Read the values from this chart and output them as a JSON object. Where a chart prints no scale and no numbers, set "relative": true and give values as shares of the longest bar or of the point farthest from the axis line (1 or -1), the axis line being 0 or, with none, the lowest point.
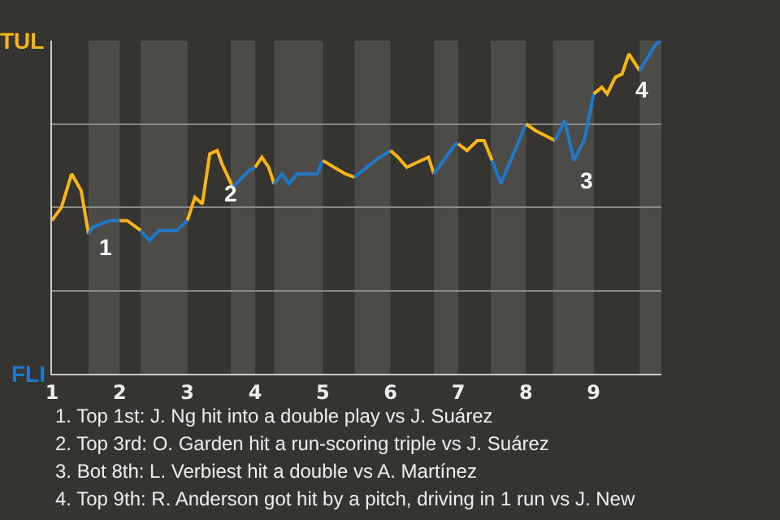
{
  "chart_data": {
    "type": "line",
    "relative": true,
    "series": [
      {
        "color": "#f7b516",
        "x": [
          1.0,
          1.14,
          1.29,
          1.43,
          1.54
        ],
        "values": [
          0.46,
          0.5,
          0.6,
          0.55,
          0.42
        ]
      },
      {
        "color": "#1f78c8",
        "x": [
          1.54,
          1.6,
          1.86,
          2.0
        ],
        "values": [
          0.42,
          0.44,
          0.46,
          0.46
        ]
      },
      {
        "color": "#f7b516",
        "x": [
          2.0,
          2.11,
          2.31
        ],
        "values": [
          0.46,
          0.46,
          0.43
        ]
      },
      {
        "color": "#1f78c8",
        "x": [
          2.31,
          2.44,
          2.58,
          2.84,
          3.0
        ],
        "values": [
          0.43,
          0.4,
          0.43,
          0.43,
          0.46
        ]
      },
      {
        "color": "#f7b516",
        "x": [
          3.0,
          3.11,
          3.22,
          3.33,
          3.44,
          3.51,
          3.67
        ],
        "values": [
          0.46,
          0.53,
          0.51,
          0.66,
          0.67,
          0.63,
          0.56
        ]
      },
      {
        "color": "#1f78c8",
        "x": [
          3.67,
          3.91,
          4.0
        ],
        "values": [
          0.56,
          0.61,
          0.62
        ]
      },
      {
        "color": "#f7b516",
        "x": [
          4.0,
          4.1,
          4.2,
          4.28
        ],
        "values": [
          0.62,
          0.65,
          0.62,
          0.57
        ]
      },
      {
        "color": "#1f78c8",
        "x": [
          4.28,
          4.4,
          4.5,
          4.62,
          4.92,
          5.0
        ],
        "values": [
          0.57,
          0.6,
          0.57,
          0.6,
          0.6,
          0.64
        ]
      },
      {
        "color": "#f7b516",
        "x": [
          5.0,
          5.33,
          5.47
        ],
        "values": [
          0.64,
          0.6,
          0.59
        ]
      },
      {
        "color": "#1f78c8",
        "x": [
          5.47,
          5.77,
          6.0
        ],
        "values": [
          0.59,
          0.64,
          0.67
        ]
      },
      {
        "color": "#f7b516",
        "x": [
          6.0,
          6.11,
          6.24,
          6.56,
          6.64
        ],
        "values": [
          0.67,
          0.65,
          0.62,
          0.65,
          0.6
        ]
      },
      {
        "color": "#1f78c8",
        "x": [
          6.64,
          6.96,
          7.0
        ],
        "values": [
          0.6,
          0.69,
          0.69
        ]
      },
      {
        "color": "#f7b516",
        "x": [
          7.0,
          7.13,
          7.28,
          7.38,
          7.5
        ],
        "values": [
          0.69,
          0.67,
          0.7,
          0.7,
          0.64
        ]
      },
      {
        "color": "#1f78c8",
        "x": [
          7.5,
          7.63,
          8.0
        ],
        "values": [
          0.64,
          0.57,
          0.75
        ]
      },
      {
        "color": "#f7b516",
        "x": [
          8.0,
          8.14,
          8.43
        ],
        "values": [
          0.75,
          0.73,
          0.7
        ]
      },
      {
        "color": "#1f78c8",
        "x": [
          8.43,
          8.57,
          8.71,
          8.86,
          9.0
        ],
        "values": [
          0.7,
          0.76,
          0.64,
          0.7,
          0.84
        ]
      },
      {
        "color": "#f7b516",
        "x": [
          9.0,
          9.12,
          9.2,
          9.32,
          9.42,
          9.52,
          9.68
        ],
        "values": [
          0.84,
          0.86,
          0.84,
          0.89,
          0.9,
          0.96,
          0.91
        ]
      },
      {
        "color": "#1f78c8",
        "x": [
          9.68,
          9.8,
          9.92,
          10.0
        ],
        "values": [
          0.91,
          0.95,
          0.99,
          1.0
        ]
      }
    ],
    "xlim": [
      1,
      10
    ],
    "xticks": [
      1,
      2,
      3,
      4,
      5,
      6,
      7,
      8,
      9
    ],
    "grid": "y",
    "marker": "none",
    "line_style": "solid",
    "bands": [
      {
        "axis": "x",
        "from": 1.54,
        "to": 2.0,
        "color": "#4d4b48"
      },
      {
        "axis": "x",
        "from": 2.31,
        "to": 3.0,
        "color": "#4d4b48"
      },
      {
        "axis": "x",
        "from": 3.64,
        "to": 4.0,
        "color": "#4d4b48"
      },
      {
        "axis": "x",
        "from": 4.28,
        "to": 5.0,
        "color": "#4d4b48"
      },
      {
        "axis": "x",
        "from": 5.47,
        "to": 6.0,
        "color": "#4d4b48"
      },
      {
        "axis": "x",
        "from": 6.64,
        "to": 7.0,
        "color": "#4d4b48"
      },
      {
        "axis": "x",
        "from": 7.48,
        "to": 8.0,
        "color": "#4d4b48"
      },
      {
        "axis": "x",
        "from": 8.4,
        "to": 9.0,
        "color": "#4d4b48"
      },
      {
        "axis": "x",
        "from": 9.68,
        "to": 10.0,
        "color": "#4d4b48"
      }
    ],
    "annotations": [
      "TUL",
      "FLI",
      {
        "text": "1",
        "x": 1.6,
        "y": 0.44
      },
      {
        "text": "2",
        "x": 3.44,
        "y": 0.6
      },
      {
        "text": "3",
        "x": 8.71,
        "y": 0.64
      },
      {
        "text": "4",
        "x": 9.52,
        "y": 0.91
      },
      "1. Top 1st: J. Ng hit into a double play vs J. Suárez",
      "2. Top 3rd: O. Garden hit a run-scoring triple vs J. Suárez",
      "3. Bot 8th: L. Verbiest hit a double vs A. Martínez",
      "4. Top 9th: R. Anderson got hit by a pitch, driving in 1 run vs J. New"
    ]
  }
}
